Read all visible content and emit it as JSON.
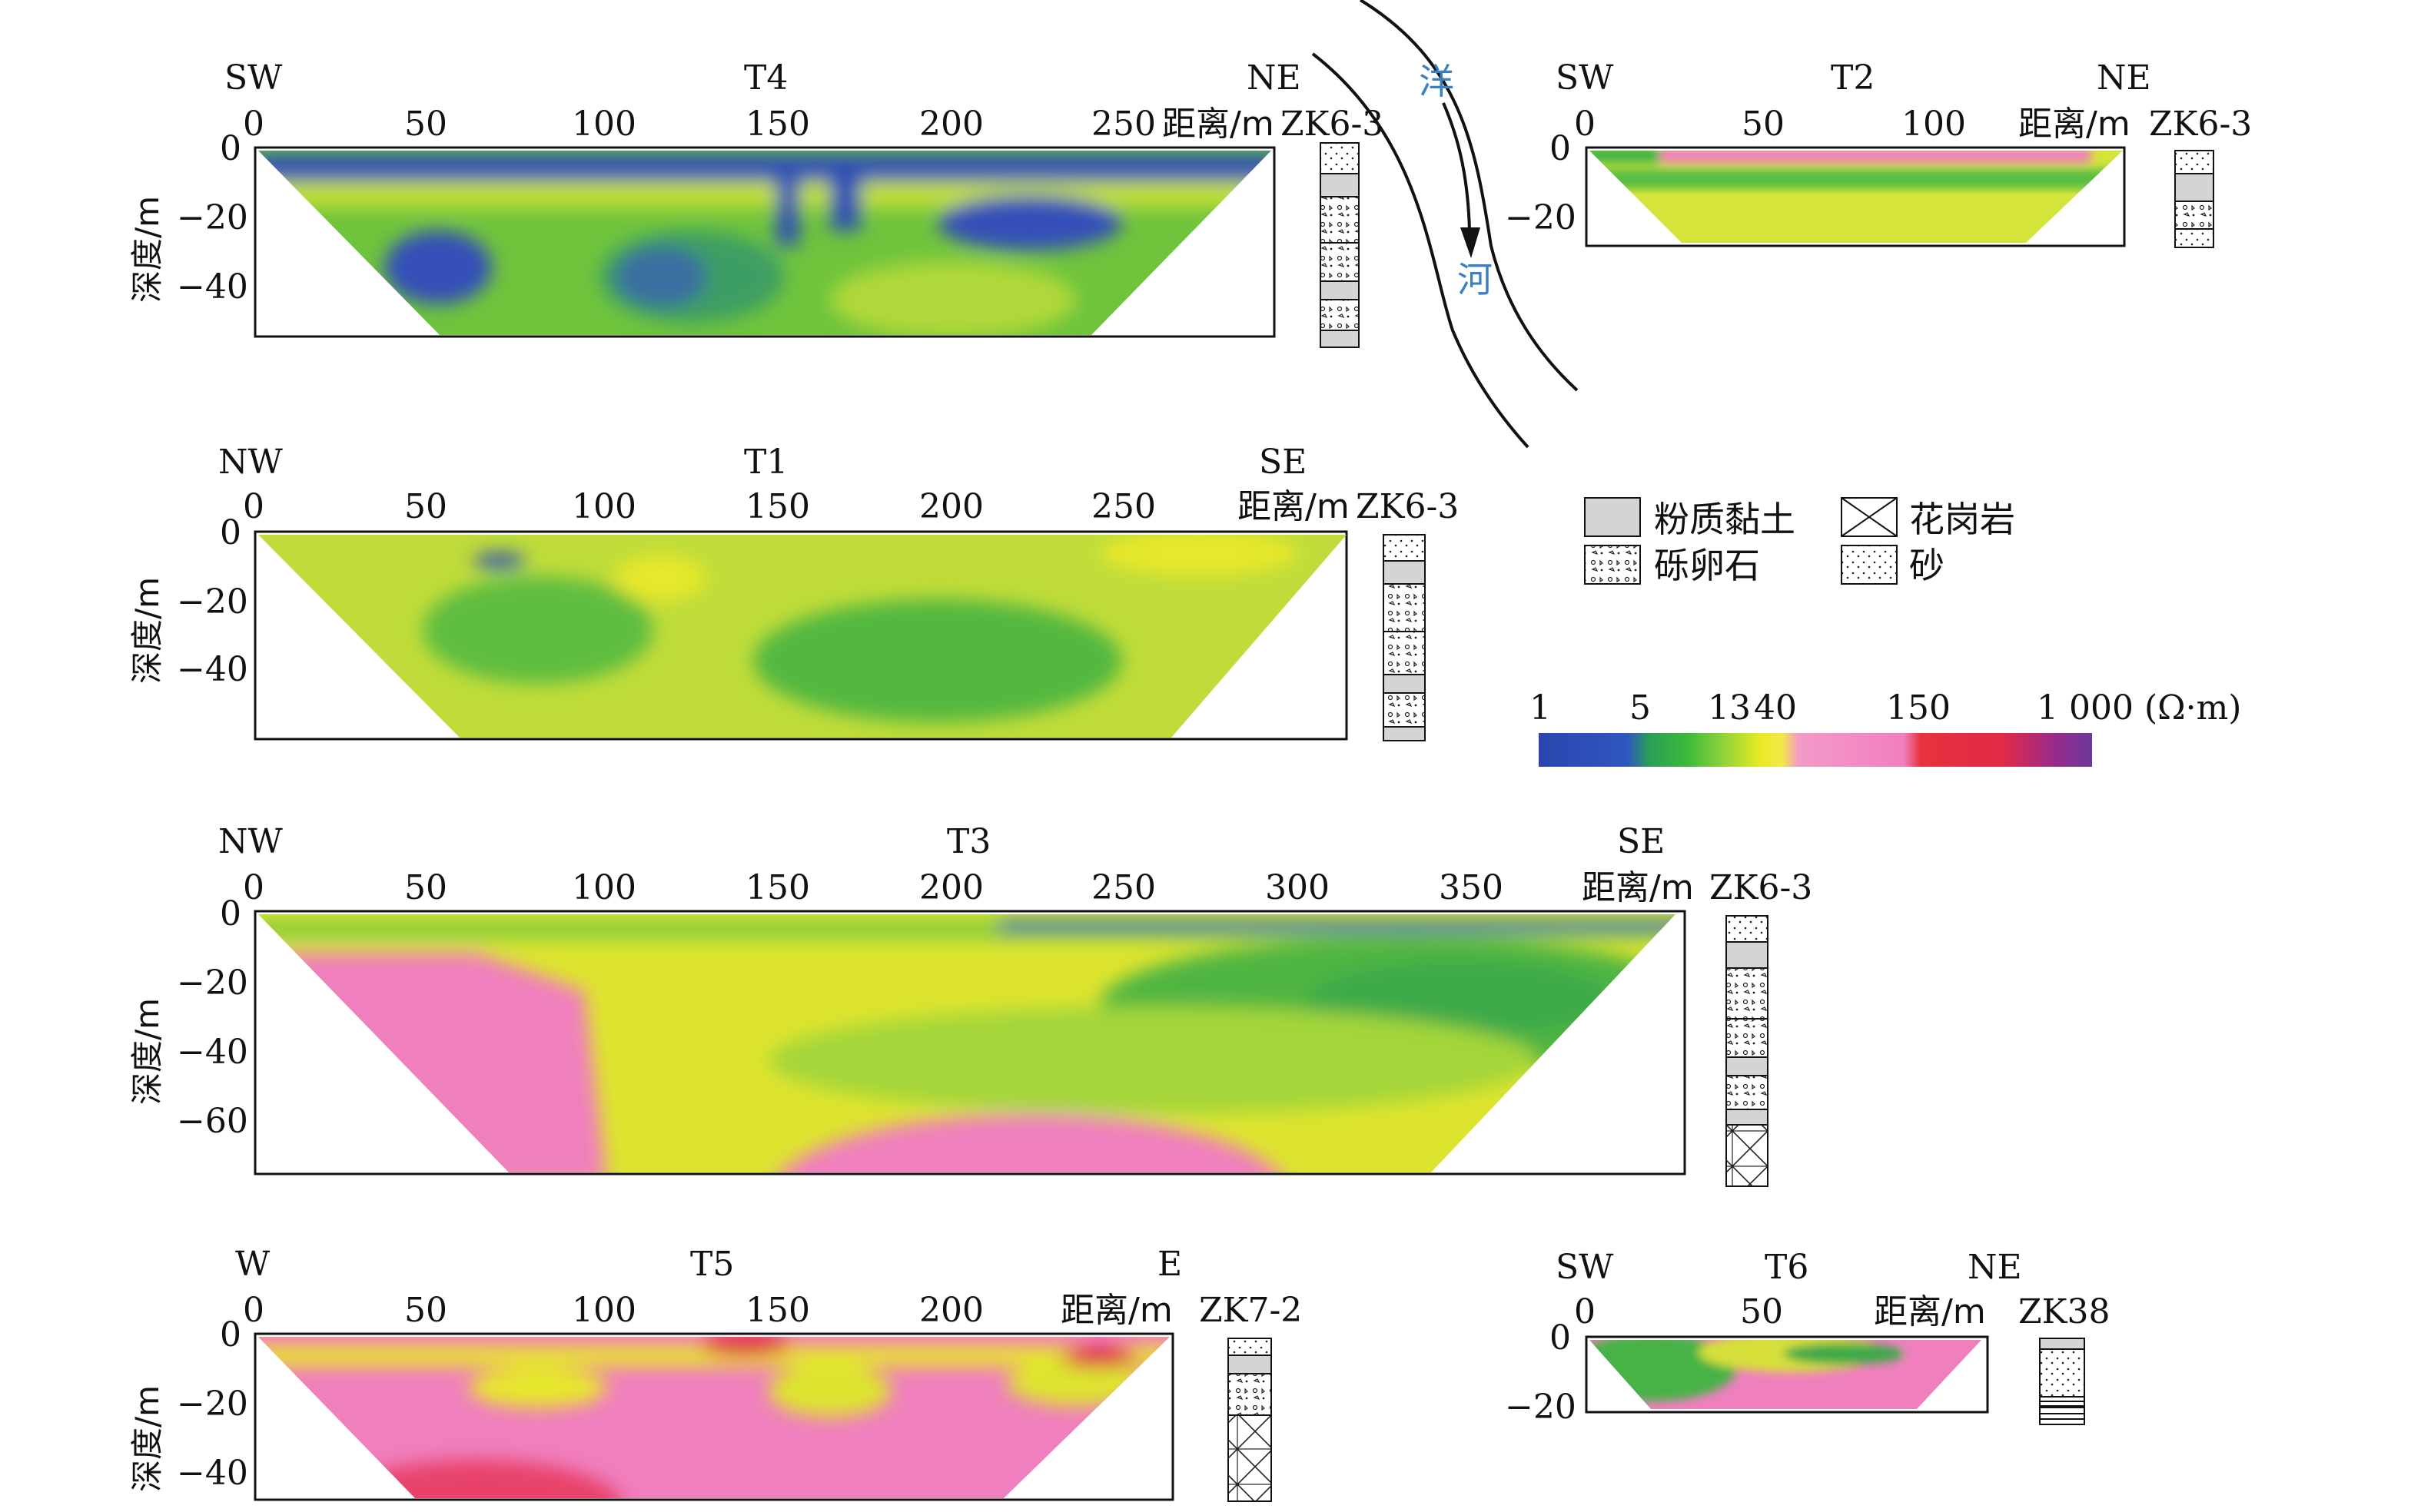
{
  "colors": {
    "very_low": "#2f4fb5",
    "low": "#3ab54a",
    "mid_low": "#8fce3c",
    "mid": "#e6e82c",
    "high": "#f07fbe",
    "very_high": "#e02a48",
    "extreme": "#6a3a9a",
    "river_text": "#3a7fc1"
  },
  "river": {
    "chars": [
      "洋",
      "河"
    ]
  },
  "depth_label": "深度/m",
  "depth_ticks_short": [
    "0",
    "−20"
  ],
  "depth_ticks_mid": [
    "0",
    "−20",
    "−40"
  ],
  "depth_ticks_long": [
    "0",
    "−20",
    "−40",
    "−60"
  ],
  "distance_unit": "距离/m",
  "legend": {
    "lithology": [
      {
        "label": "粉质黏土",
        "pattern": "silty-clay"
      },
      {
        "label": "花岗岩",
        "pattern": "granite"
      },
      {
        "label": "砾卵石",
        "pattern": "gravel"
      },
      {
        "label": "砂",
        "pattern": "sand"
      }
    ],
    "scale_ticks": [
      "1",
      "5",
      "13",
      "40",
      "150",
      "1 000 (Ω·m)"
    ]
  },
  "profiles": {
    "T4": {
      "name": "T4",
      "left_dir": "SW",
      "right_dir": "NE",
      "ticks": [
        "0",
        "50",
        "100",
        "150",
        "200",
        "250"
      ],
      "borehole": "ZK6-3"
    },
    "T2": {
      "name": "T2",
      "left_dir": "SW",
      "right_dir": "NE",
      "ticks": [
        "0",
        "50",
        "100"
      ],
      "borehole": "ZK6-3"
    },
    "T1": {
      "name": "T1",
      "left_dir": "NW",
      "right_dir": "SE",
      "ticks": [
        "0",
        "50",
        "100",
        "150",
        "200",
        "250"
      ],
      "borehole": "ZK6-3"
    },
    "T3": {
      "name": "T3",
      "left_dir": "NW",
      "right_dir": "SE",
      "ticks": [
        "0",
        "50",
        "100",
        "150",
        "200",
        "250",
        "300",
        "350"
      ],
      "borehole": "ZK6-3"
    },
    "T5": {
      "name": "T5",
      "left_dir": "W",
      "right_dir": "E",
      "ticks": [
        "0",
        "50",
        "100",
        "150",
        "200"
      ],
      "borehole": "ZK7-2"
    },
    "T6": {
      "name": "T6",
      "left_dir": "SW",
      "right_dir": "NE",
      "ticks": [
        "0",
        "50"
      ],
      "borehole": "ZK38"
    }
  }
}
